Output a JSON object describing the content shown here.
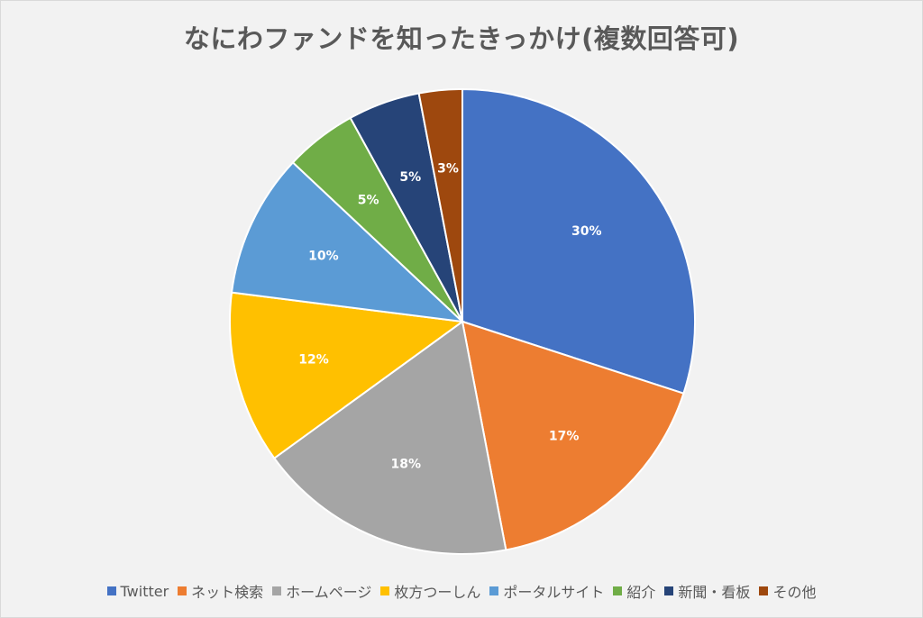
{
  "chart_data": {
    "type": "pie",
    "title": "なにわファンドを知ったきっかけ(複数回答可)",
    "slices": [
      {
        "name": "Twitter",
        "value": 30,
        "label": "30%",
        "color": "#4472C4"
      },
      {
        "name": "ネット検索",
        "value": 17,
        "label": "17%",
        "color": "#ED7D31"
      },
      {
        "name": "ホームページ",
        "value": 18,
        "label": "18%",
        "color": "#A5A5A5"
      },
      {
        "name": "枚方つーしん",
        "value": 12,
        "label": "12%",
        "color": "#FFC000"
      },
      {
        "name": "ポータルサイト",
        "value": 10,
        "label": "10%",
        "color": "#5B9BD5"
      },
      {
        "name": "紹介",
        "value": 5,
        "label": "5%",
        "color": "#70AD47"
      },
      {
        "name": "新聞・看板",
        "value": 5,
        "label": "5%",
        "color": "#264478"
      },
      {
        "name": "その他",
        "value": 3,
        "label": "3%",
        "color": "#9E480E"
      }
    ],
    "legend_position": "bottom"
  }
}
